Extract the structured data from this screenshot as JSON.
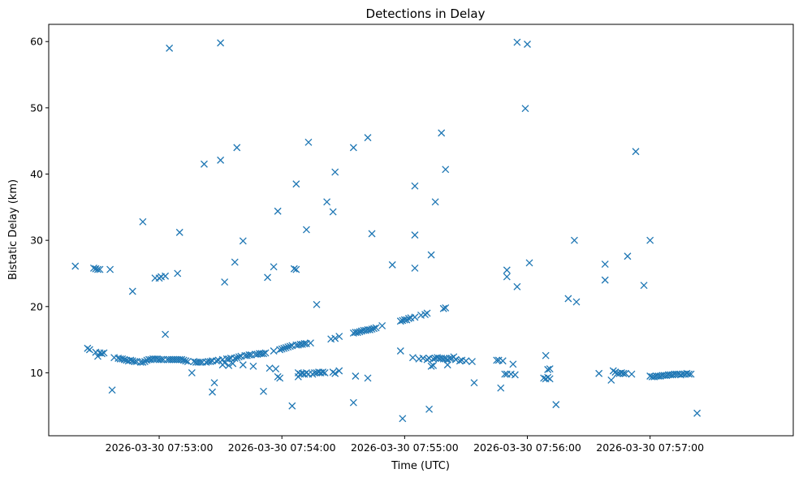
{
  "chart_data": {
    "type": "scatter",
    "title": "Detections in Delay",
    "xlabel": "Time (UTC)",
    "ylabel": "Bistatic Delay (km)",
    "marker": "x",
    "color": "#1f77b4",
    "xlim": [
      -54,
      310
    ],
    "ylim": [
      0.5,
      62.6
    ],
    "x_unit": "seconds relative to 2026-03-30 07:53:00",
    "xticks": [
      {
        "value": 0,
        "label": "2026-03-30 07:53:00"
      },
      {
        "value": 60,
        "label": "2026-03-30 07:54:00"
      },
      {
        "value": 120,
        "label": "2026-03-30 07:55:00"
      },
      {
        "value": 180,
        "label": "2026-03-30 07:56:00"
      },
      {
        "value": 240,
        "label": "2026-03-30 07:57:00"
      }
    ],
    "yticks": [
      10,
      20,
      30,
      40,
      50,
      60
    ],
    "series": [
      {
        "name": "Detections",
        "points": [
          [
            -41,
            26.1
          ],
          [
            -35,
            13.7
          ],
          [
            -34,
            13.5
          ],
          [
            -32,
            25.8
          ],
          [
            -31,
            25.7
          ],
          [
            -31,
            13.1
          ],
          [
            -30,
            25.6
          ],
          [
            -30,
            12.5
          ],
          [
            -29,
            13.0
          ],
          [
            -29,
            25.6
          ],
          [
            -28,
            12.9
          ],
          [
            -27,
            13.0
          ],
          [
            -24,
            25.6
          ],
          [
            -23,
            7.4
          ],
          [
            -22,
            12.3
          ],
          [
            -20,
            12.2
          ],
          [
            -19,
            12.1
          ],
          [
            -18,
            12.1
          ],
          [
            -17,
            12.0
          ],
          [
            -16,
            11.9
          ],
          [
            -15,
            11.8
          ],
          [
            -14,
            11.9
          ],
          [
            -13,
            22.3
          ],
          [
            -13,
            11.8
          ],
          [
            -12,
            11.7
          ],
          [
            -11,
            11.7
          ],
          [
            -9,
            11.6
          ],
          [
            -8,
            32.8
          ],
          [
            -8,
            11.6
          ],
          [
            -7,
            11.7
          ],
          [
            -6,
            11.9
          ],
          [
            -5,
            12.0
          ],
          [
            -4,
            12.0
          ],
          [
            -3,
            12.1
          ],
          [
            -2,
            24.3
          ],
          [
            -2,
            12.1
          ],
          [
            -1,
            12.1
          ],
          [
            0,
            24.3
          ],
          [
            0,
            12.0
          ],
          [
            1,
            12.0
          ],
          [
            1,
            24.5
          ],
          [
            2,
            12.0
          ],
          [
            3,
            24.6
          ],
          [
            3,
            15.8
          ],
          [
            4,
            12.0
          ],
          [
            5,
            59.0
          ],
          [
            5,
            12.0
          ],
          [
            6,
            12.0
          ],
          [
            7,
            12.0
          ],
          [
            8,
            12.0
          ],
          [
            9,
            25.0
          ],
          [
            9,
            12.0
          ],
          [
            10,
            31.2
          ],
          [
            10,
            12.0
          ],
          [
            11,
            12.0
          ],
          [
            12,
            11.9
          ],
          [
            13,
            11.8
          ],
          [
            14,
            11.7
          ],
          [
            16,
            10.0
          ],
          [
            17,
            11.7
          ],
          [
            18,
            11.6
          ],
          [
            19,
            11.6
          ],
          [
            20,
            11.6
          ],
          [
            21,
            11.6
          ],
          [
            22,
            41.5
          ],
          [
            23,
            11.6
          ],
          [
            24,
            11.7
          ],
          [
            25,
            11.7
          ],
          [
            26,
            7.1
          ],
          [
            26,
            11.8
          ],
          [
            27,
            8.5
          ],
          [
            28,
            11.8
          ],
          [
            29,
            11.9
          ],
          [
            30,
            42.1
          ],
          [
            30,
            59.8
          ],
          [
            31,
            12.0
          ],
          [
            31,
            11.2
          ],
          [
            32,
            23.7
          ],
          [
            32,
            11.5
          ],
          [
            33,
            12.1
          ],
          [
            34,
            12.1
          ],
          [
            34,
            11.1
          ],
          [
            35,
            12.2
          ],
          [
            36,
            11.4
          ],
          [
            37,
            26.7
          ],
          [
            37,
            12.2
          ],
          [
            38,
            44.0
          ],
          [
            38,
            12.3
          ],
          [
            39,
            12.4
          ],
          [
            40,
            12.5
          ],
          [
            41,
            29.9
          ],
          [
            41,
            11.2
          ],
          [
            42,
            12.6
          ],
          [
            43,
            12.6
          ],
          [
            44,
            12.7
          ],
          [
            45,
            12.7
          ],
          [
            46,
            11.0
          ],
          [
            47,
            12.8
          ],
          [
            48,
            12.8
          ],
          [
            49,
            12.9
          ],
          [
            50,
            12.9
          ],
          [
            51,
            7.2
          ],
          [
            51,
            12.9
          ],
          [
            52,
            13.0
          ],
          [
            53,
            24.4
          ],
          [
            54,
            10.7
          ],
          [
            56,
            26.0
          ],
          [
            56,
            13.3
          ],
          [
            57,
            10.6
          ],
          [
            58,
            34.4
          ],
          [
            58,
            9.4
          ],
          [
            59,
            9.2
          ],
          [
            59,
            13.5
          ],
          [
            60,
            13.6
          ],
          [
            61,
            13.7
          ],
          [
            62,
            13.8
          ],
          [
            63,
            13.9
          ],
          [
            64,
            14.0
          ],
          [
            65,
            5.0
          ],
          [
            65,
            14.1
          ],
          [
            66,
            25.7
          ],
          [
            67,
            38.5
          ],
          [
            67,
            25.6
          ],
          [
            67,
            14.2
          ],
          [
            68,
            14.2
          ],
          [
            68,
            10.0
          ],
          [
            68,
            9.4
          ],
          [
            69,
            14.3
          ],
          [
            69,
            9.8
          ],
          [
            70,
            14.3
          ],
          [
            70,
            9.9
          ],
          [
            71,
            9.8
          ],
          [
            71,
            14.4
          ],
          [
            72,
            31.6
          ],
          [
            72,
            10.0
          ],
          [
            72,
            14.4
          ],
          [
            73,
            44.8
          ],
          [
            73,
            9.8
          ],
          [
            74,
            14.5
          ],
          [
            75,
            9.8
          ],
          [
            76,
            10.0
          ],
          [
            77,
            20.3
          ],
          [
            77,
            10.0
          ],
          [
            78,
            10.1
          ],
          [
            79,
            10.0
          ],
          [
            80,
            10.1
          ],
          [
            81,
            10.0
          ],
          [
            82,
            35.8
          ],
          [
            84,
            15.1
          ],
          [
            85,
            34.3
          ],
          [
            85,
            10.1
          ],
          [
            86,
            40.3
          ],
          [
            86,
            15.2
          ],
          [
            86,
            9.9
          ],
          [
            88,
            15.5
          ],
          [
            88,
            10.3
          ],
          [
            95,
            44.0
          ],
          [
            95,
            5.5
          ],
          [
            95,
            16.0
          ],
          [
            96,
            9.5
          ],
          [
            96,
            16.1
          ],
          [
            97,
            16.1
          ],
          [
            98,
            16.2
          ],
          [
            99,
            16.3
          ],
          [
            100,
            16.4
          ],
          [
            101,
            16.4
          ],
          [
            102,
            45.5
          ],
          [
            102,
            9.2
          ],
          [
            102,
            16.5
          ],
          [
            103,
            16.5
          ],
          [
            104,
            31.0
          ],
          [
            104,
            16.6
          ],
          [
            105,
            16.7
          ],
          [
            106,
            16.8
          ],
          [
            109,
            17.1
          ],
          [
            114,
            26.3
          ],
          [
            118,
            13.3
          ],
          [
            118,
            17.8
          ],
          [
            119,
            3.1
          ],
          [
            119,
            17.9
          ],
          [
            120,
            18.0
          ],
          [
            121,
            18.0
          ],
          [
            122,
            18.2
          ],
          [
            123,
            18.3
          ],
          [
            124,
            12.3
          ],
          [
            125,
            38.2
          ],
          [
            125,
            30.8
          ],
          [
            125,
            25.8
          ],
          [
            125,
            18.4
          ],
          [
            127,
            12.1
          ],
          [
            128,
            18.7
          ],
          [
            129,
            12.2
          ],
          [
            130,
            18.8
          ],
          [
            131,
            19.0
          ],
          [
            131,
            12.0
          ],
          [
            132,
            4.5
          ],
          [
            132,
            12.2
          ],
          [
            133,
            27.8
          ],
          [
            133,
            11.0
          ],
          [
            134,
            12.1
          ],
          [
            134,
            11.1
          ],
          [
            135,
            35.8
          ],
          [
            135,
            12.2
          ],
          [
            136,
            12.3
          ],
          [
            137,
            12.2
          ],
          [
            138,
            46.2
          ],
          [
            138,
            12.2
          ],
          [
            139,
            12.1
          ],
          [
            139,
            19.7
          ],
          [
            140,
            12.1
          ],
          [
            140,
            40.7
          ],
          [
            140,
            19.8
          ],
          [
            141,
            11.2
          ],
          [
            141,
            12.0
          ],
          [
            142,
            12.2
          ],
          [
            143,
            12.2
          ],
          [
            144,
            12.4
          ],
          [
            145,
            12.0
          ],
          [
            147,
            11.8
          ],
          [
            148,
            11.9
          ],
          [
            150,
            11.8
          ],
          [
            153,
            11.7
          ],
          [
            154,
            8.5
          ],
          [
            165,
            11.9
          ],
          [
            166,
            11.9
          ],
          [
            167,
            7.7
          ],
          [
            168,
            11.8
          ],
          [
            169,
            9.8
          ],
          [
            170,
            24.5
          ],
          [
            170,
            25.5
          ],
          [
            170,
            9.8
          ],
          [
            172,
            9.8
          ],
          [
            173,
            11.3
          ],
          [
            174,
            9.7
          ],
          [
            175,
            23.0
          ],
          [
            175,
            59.9
          ],
          [
            179,
            49.9
          ],
          [
            180,
            59.6
          ],
          [
            181,
            26.6
          ],
          [
            188,
            9.2
          ],
          [
            189,
            12.6
          ],
          [
            189,
            9.1
          ],
          [
            190,
            10.5
          ],
          [
            190,
            9.3
          ],
          [
            191,
            10.6
          ],
          [
            191,
            9.1
          ],
          [
            194,
            5.2
          ],
          [
            200,
            21.2
          ],
          [
            203,
            30.0
          ],
          [
            204,
            20.7
          ],
          [
            215,
            9.9
          ],
          [
            218,
            26.4
          ],
          [
            218,
            24.0
          ],
          [
            221,
            8.9
          ],
          [
            222,
            10.3
          ],
          [
            223,
            10.1
          ],
          [
            224,
            9.9
          ],
          [
            225,
            9.9
          ],
          [
            226,
            10.0
          ],
          [
            227,
            9.9
          ],
          [
            228,
            9.9
          ],
          [
            229,
            27.6
          ],
          [
            231,
            9.8
          ],
          [
            233,
            43.4
          ],
          [
            237,
            23.2
          ],
          [
            240,
            30.0
          ],
          [
            240,
            9.5
          ],
          [
            241,
            9.4
          ],
          [
            242,
            9.4
          ],
          [
            243,
            9.5
          ],
          [
            244,
            9.5
          ],
          [
            245,
            9.5
          ],
          [
            246,
            9.6
          ],
          [
            247,
            9.6
          ],
          [
            248,
            9.6
          ],
          [
            249,
            9.7
          ],
          [
            250,
            9.7
          ],
          [
            251,
            9.7
          ],
          [
            252,
            9.8
          ],
          [
            253,
            9.8
          ],
          [
            254,
            9.8
          ],
          [
            255,
            9.7
          ],
          [
            256,
            9.8
          ],
          [
            257,
            9.8
          ],
          [
            258,
            9.9
          ],
          [
            259,
            9.8
          ],
          [
            260,
            9.8
          ],
          [
            263,
            3.9
          ]
        ]
      }
    ]
  }
}
